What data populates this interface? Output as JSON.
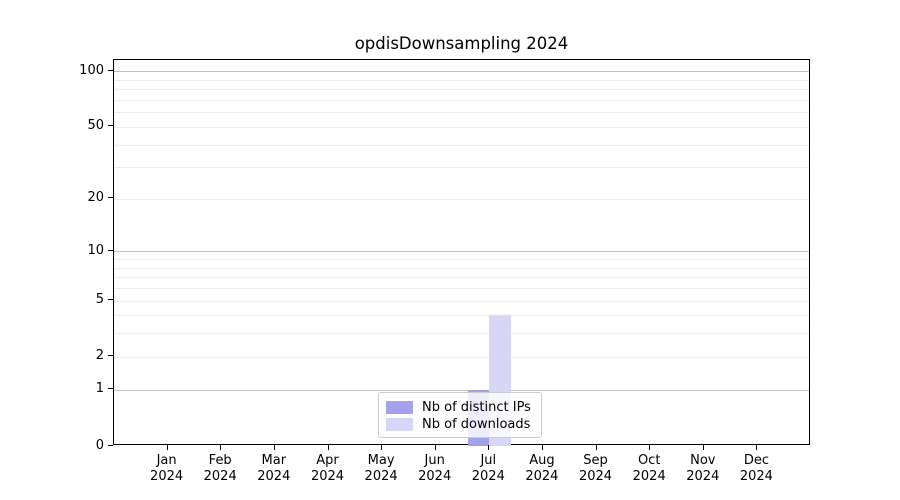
{
  "title": "opdisDownsampling 2024",
  "chart_data": {
    "type": "bar",
    "title": "opdisDownsampling 2024",
    "categories": [
      "Jan 2024",
      "Feb 2024",
      "Mar 2024",
      "Apr 2024",
      "May 2024",
      "Jun 2024",
      "Jul 2024",
      "Aug 2024",
      "Sep 2024",
      "Oct 2024",
      "Nov 2024",
      "Dec 2024"
    ],
    "category_line1": [
      "Jan",
      "Feb",
      "Mar",
      "Apr",
      "May",
      "Jun",
      "Jul",
      "Aug",
      "Sep",
      "Oct",
      "Nov",
      "Dec"
    ],
    "category_line2": "2024",
    "series": [
      {
        "name": "Nb of distinct IPs",
        "color": "#a3a3eb",
        "values": [
          0,
          0,
          0,
          0,
          0,
          0,
          1,
          0,
          0,
          0,
          0,
          0
        ]
      },
      {
        "name": "Nb of downloads",
        "color": "#d7d7f5",
        "values": [
          0,
          0,
          0,
          0,
          0,
          0,
          4,
          0,
          0,
          0,
          0,
          0
        ]
      }
    ],
    "xlabel": "",
    "ylabel": "",
    "yscale": "log10(1+y)",
    "yticks": [
      0,
      1,
      2,
      5,
      10,
      20,
      50,
      100
    ],
    "yticks_minor": [
      2,
      3,
      4,
      5,
      6,
      7,
      8,
      9,
      20,
      30,
      40,
      50,
      60,
      70,
      80,
      90
    ],
    "yticks_major_grid": [
      1,
      10,
      100
    ],
    "ylim": [
      0,
      115
    ],
    "grid": "horizontal",
    "legend_position": "lower-center-inside",
    "colors": {
      "grid_major": "#c0c0c0",
      "grid_minor": "#ebebeb",
      "spine": "#000000",
      "background": "#ffffff",
      "text": "#000000"
    }
  },
  "legend": {
    "items": [
      {
        "label": "Nb of distinct IPs"
      },
      {
        "label": "Nb of downloads"
      }
    ]
  }
}
